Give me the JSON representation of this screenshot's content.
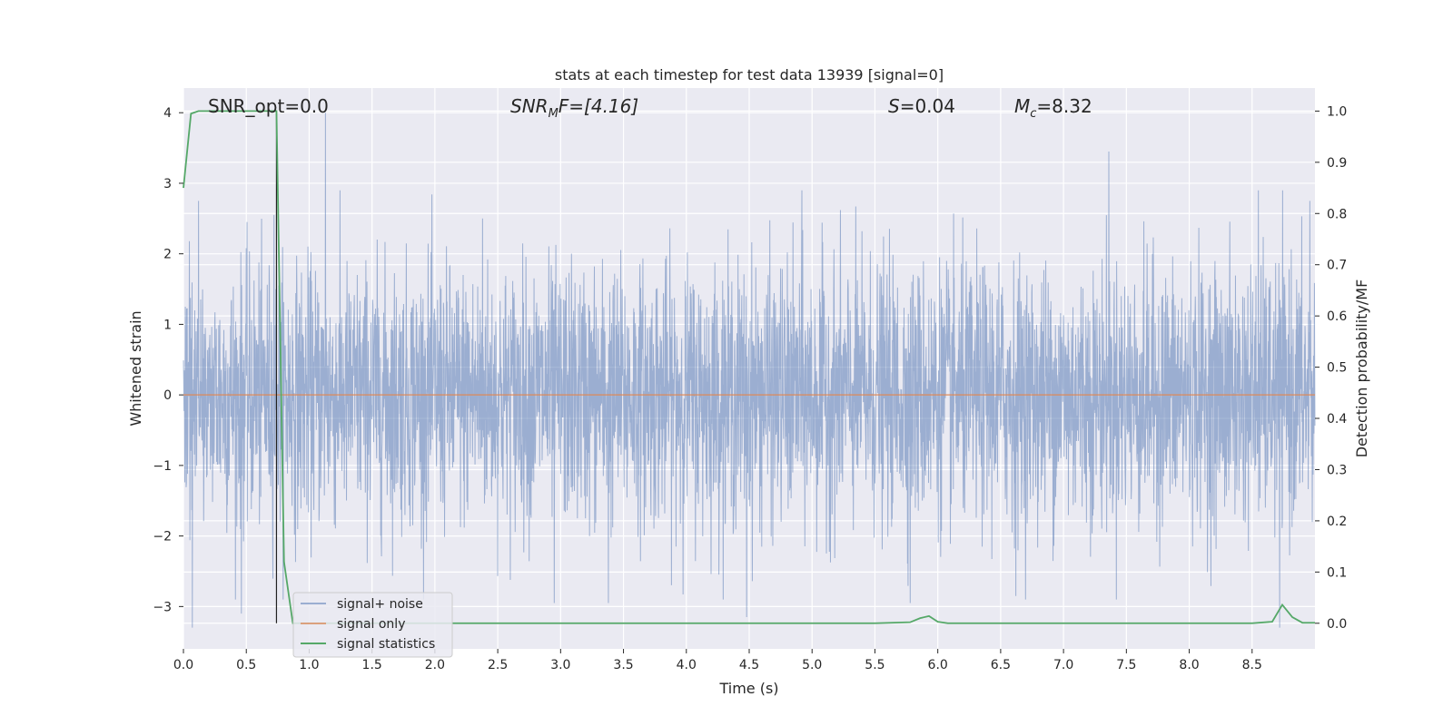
{
  "chart_data": {
    "type": "line",
    "title": "stats at each timestep for test data 13939 [signal=0]",
    "xlabel": "Time (s)",
    "ylabel_left": "Whitened strain",
    "ylabel_right": "Detection probability/MF",
    "xlim": [
      0.0,
      9.0
    ],
    "ylim_left": [
      -3.6,
      4.35
    ],
    "ylim_right": [
      -0.05,
      1.045
    ],
    "x_ticks": [
      0.0,
      0.5,
      1.0,
      1.5,
      2.0,
      2.5,
      3.0,
      3.5,
      4.0,
      4.5,
      5.0,
      5.5,
      6.0,
      6.5,
      7.0,
      7.5,
      8.0,
      8.5
    ],
    "x_tick_labels": [
      "0.0",
      "0.5",
      "1.0",
      "1.5",
      "2.0",
      "2.5",
      "3.0",
      "3.5",
      "4.0",
      "4.5",
      "5.0",
      "5.5",
      "6.0",
      "6.5",
      "7.0",
      "7.5",
      "8.0",
      "8.5"
    ],
    "y_left_ticks": [
      4,
      3,
      2,
      1,
      0,
      -1,
      -2,
      -3
    ],
    "y_left_tick_labels": [
      "4",
      "3",
      "2",
      "1",
      "0",
      "−1",
      "−2",
      "−3"
    ],
    "y_right_ticks": [
      1.0,
      0.9,
      0.8,
      0.7,
      0.6,
      0.5,
      0.4,
      0.3,
      0.2,
      0.1,
      0.0
    ],
    "y_right_tick_labels": [
      "1.0",
      "0.9",
      "0.8",
      "0.7",
      "0.6",
      "0.5",
      "0.4",
      "0.3",
      "0.2",
      "0.1",
      "0.0"
    ],
    "grid": true,
    "legend_position": "lower-left",
    "annotations": {
      "snr_opt": "SNR_opt=0.0",
      "snr_mf_base": "SNR",
      "snr_mf_sub": "M",
      "snr_mf_rest": "F=[4.16]",
      "s_italic": "S",
      "s_rest": "=0.04",
      "mc_base": "M",
      "mc_sub": "c",
      "mc_rest": "=8.32"
    },
    "marker_line_x": 0.74,
    "series": [
      {
        "name": "signal+ noise",
        "color": "#4c72b0",
        "note_style": "dense noise, approx std 0.9",
        "peaks_x": [
          0.12,
          0.72,
          1.13,
          2.38,
          4.92,
          7.36,
          8.55,
          8.96
        ],
        "peaks_y": [
          2.75,
          2.55,
          4.0,
          2.5,
          2.9,
          3.45,
          2.9,
          2.75
        ],
        "troughs_x": [
          0.07,
          0.46,
          2.95,
          3.38,
          4.48,
          5.78,
          6.62,
          8.72
        ],
        "troughs_y": [
          -3.3,
          -3.1,
          -2.95,
          -2.95,
          -3.15,
          -2.95,
          -2.85,
          -3.3
        ]
      },
      {
        "name": "signal only",
        "color": "#dd8452",
        "x": [
          0.0,
          9.0
        ],
        "y": [
          0.0,
          0.0
        ]
      },
      {
        "name": "signal statistics",
        "color": "#55a868",
        "axis": "right",
        "x": [
          0.0,
          0.06,
          0.12,
          0.25,
          0.5,
          0.74,
          0.8,
          0.87,
          0.95,
          1.5,
          2.0,
          3.0,
          4.0,
          5.0,
          5.5,
          5.78,
          5.86,
          5.93,
          6.0,
          6.08,
          6.5,
          7.0,
          7.5,
          8.0,
          8.5,
          8.66,
          8.74,
          8.82,
          8.9,
          9.0
        ],
        "y": [
          0.85,
          0.995,
          1.0,
          1.0,
          1.0,
          1.0,
          0.12,
          0.0,
          0.0,
          0.0,
          0.0,
          0.0,
          0.0,
          0.0,
          0.0,
          0.002,
          0.01,
          0.014,
          0.003,
          0.0,
          0.0,
          0.0,
          0.0,
          0.0,
          0.0,
          0.003,
          0.036,
          0.012,
          0.001,
          0.001
        ]
      }
    ]
  }
}
